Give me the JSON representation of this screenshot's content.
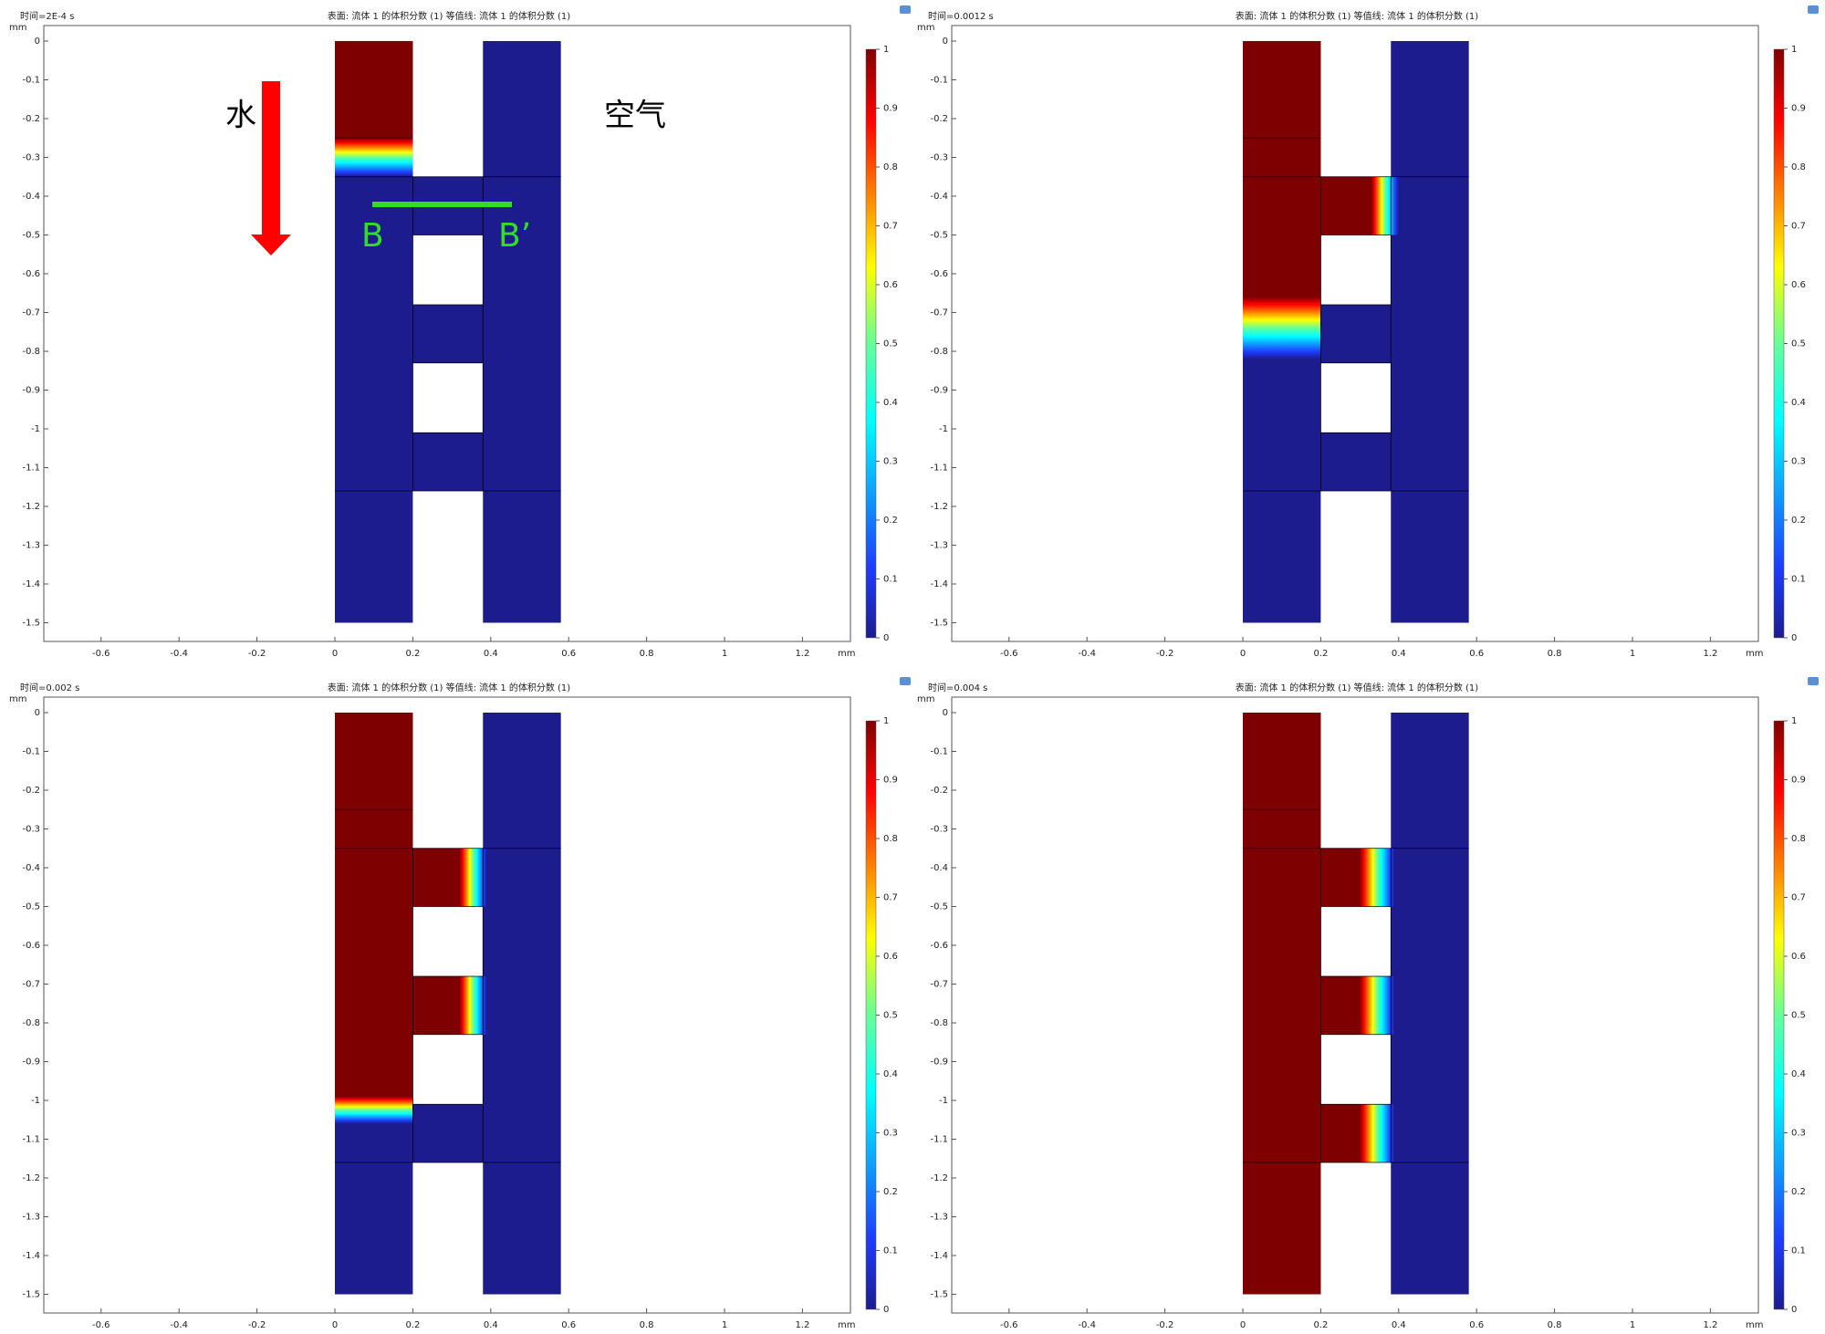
{
  "axes": {
    "unit": "mm",
    "x_ticks": [
      "-0.6",
      "-0.4",
      "-0.2",
      "0",
      "0.2",
      "0.4",
      "0.6",
      "0.8",
      "1",
      "1.2"
    ],
    "y_ticks": [
      "0",
      "-0.1",
      "-0.2",
      "-0.3",
      "-0.4",
      "-0.5",
      "-0.6",
      "-0.7",
      "-0.8",
      "-0.9",
      "-1",
      "-1.1",
      "-1.2",
      "-1.3",
      "-1.4",
      "-1.5"
    ],
    "colorbar_ticks": [
      "0",
      "0.1",
      "0.2",
      "0.3",
      "0.4",
      "0.5",
      "0.6",
      "0.7",
      "0.8",
      "0.9",
      "1"
    ]
  },
  "panels": [
    {
      "time": "时间=2E-4 s",
      "caption": "表面: 流体 1 的体积分数 (1)  等值线: 流体 1 的体积分数 (1)"
    },
    {
      "time": "时间=0.0012 s",
      "caption": "表面: 流体 1 的体积分数 (1)  等值线: 流体 1 的体积分数 (1)"
    },
    {
      "time": "时间=0.002 s",
      "caption": "表面: 流体 1 的体积分数 (1)  等值线: 流体 1 的体积分数 (1)"
    },
    {
      "time": "时间=0.004 s",
      "caption": "表面: 流体 1 的体积分数 (1)  等值线: 流体 1 的体积分数 (1)"
    }
  ],
  "annotations": {
    "water": "水",
    "air": "空气",
    "b": "B",
    "b_prime": "B’"
  }
}
